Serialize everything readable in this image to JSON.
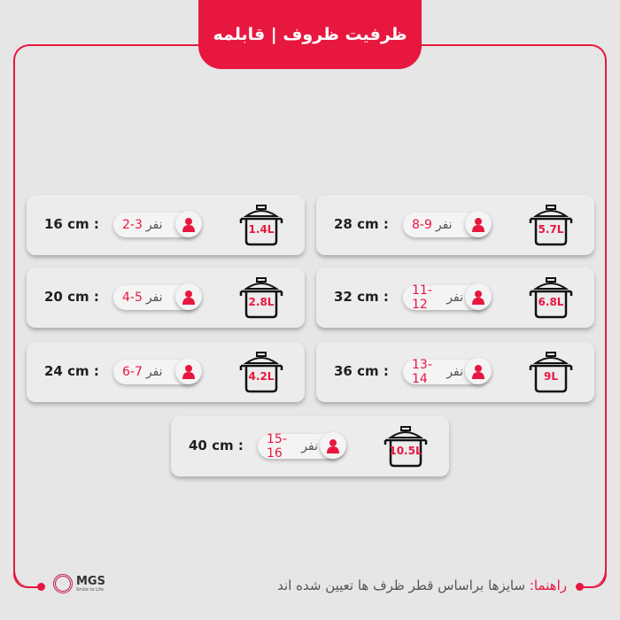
{
  "title": "ظرفیت ظروف | قابلمه",
  "accent": "#e8173f",
  "unit": "نفر",
  "items": [
    {
      "size": "16 cm :",
      "people": "2-3",
      "volume": "1.4L"
    },
    {
      "size": "28 cm :",
      "people": "8-9",
      "volume": "5.7L"
    },
    {
      "size": "20 cm :",
      "people": "4-5",
      "volume": "2.8L"
    },
    {
      "size": "32 cm :",
      "people": "11-12",
      "volume": "6.8L"
    },
    {
      "size": "24 cm :",
      "people": "6-7",
      "volume": "4.2L"
    },
    {
      "size": "36 cm :",
      "people": "13-14",
      "volume": "9L"
    },
    {
      "size": "40 cm :",
      "people": "15-16",
      "volume": "10.5L"
    }
  ],
  "footer": {
    "label": "راهنما:",
    "text": " سایزها براساس قطر ظرف ها تعیین شده اند"
  },
  "logo": {
    "name": "MGS",
    "tagline": "Smile to Life"
  }
}
